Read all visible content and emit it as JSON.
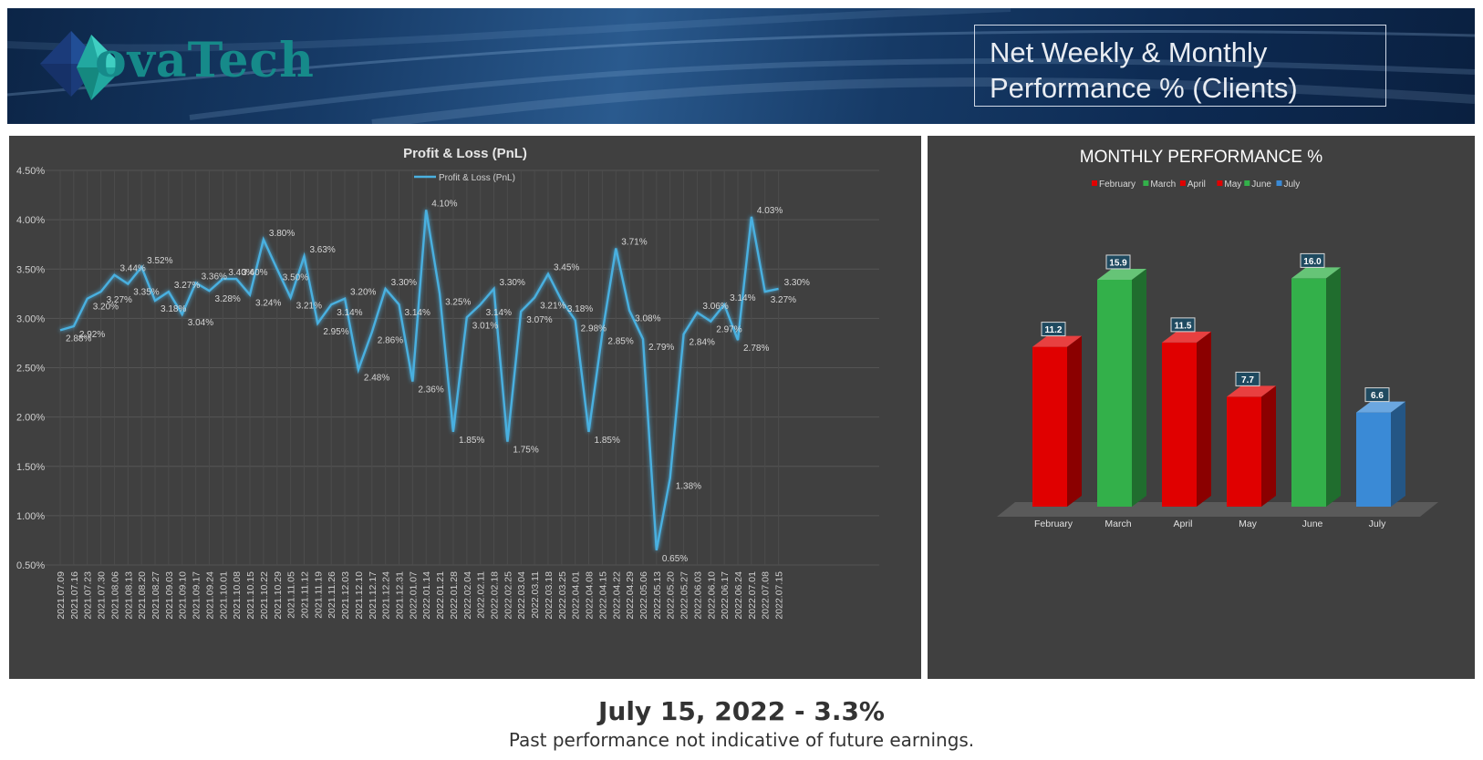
{
  "header": {
    "logo_text": "ovaTech",
    "title_line1": "Net Weekly & Monthly",
    "title_line2": "Performance % (Clients)"
  },
  "footer": {
    "headline": "July 15, 2022 - 3.3%",
    "disclaimer": "Past performance not indicative of future earnings."
  },
  "colors": {
    "line": "#4ab0e0",
    "panel_bg": "#404040",
    "green": "#33b04a",
    "red": "#e00000",
    "blue": "#3a8ad6"
  },
  "chart_data": [
    {
      "type": "line",
      "title": "Profit & Loss (PnL)",
      "legend_position": "top",
      "grid": true,
      "series_name": "Profit & Loss (PnL)",
      "y_ticks": [
        "4.50%",
        "4.00%",
        "3.50%",
        "3.00%",
        "2.50%",
        "2.00%",
        "1.50%",
        "1.00%",
        "0.50%"
      ],
      "ylim": [
        0.5,
        4.5
      ],
      "x": [
        "2021.07.09",
        "2021.07.16",
        "2021.07.23",
        "2021.07.30",
        "2021.08.06",
        "2021.08.13",
        "2021.08.20",
        "2021.08.27",
        "2021.09.03",
        "2021.09.10",
        "2021.09.17",
        "2021.09.24",
        "2021.10.01",
        "2021.10.08",
        "2021.10.15",
        "2021.10.22",
        "2021.10.29",
        "2021.11.05",
        "2021.11.12",
        "2021.11.19",
        "2021.11.26",
        "2021.12.03",
        "2021.12.10",
        "2021.12.17",
        "2021.12.24",
        "2021.12.31",
        "2022.01.07",
        "2022.01.14",
        "2022.01.21",
        "2022.01.28",
        "2022.02.04",
        "2022.02.11",
        "2022.02.18",
        "2022.02.25",
        "2022.03.04",
        "2022.03.11",
        "2022.03.18",
        "2022.03.25",
        "2022.04.01",
        "2022.04.08",
        "2022.04.15",
        "2022.04.22",
        "2022.04.29",
        "2022.05.06",
        "2022.05.13",
        "2022.05.20",
        "2022.05.27",
        "2022.06.03",
        "2022.06.10",
        "2022.06.17",
        "2022.06.24",
        "2022.07.01",
        "2022.07.08",
        "2022.07.15"
      ],
      "values": [
        2.88,
        2.92,
        3.2,
        3.27,
        3.44,
        3.35,
        3.52,
        3.18,
        3.27,
        3.04,
        3.36,
        3.28,
        3.4,
        3.4,
        3.24,
        3.8,
        3.5,
        3.21,
        3.63,
        2.95,
        3.14,
        3.2,
        2.48,
        2.86,
        3.3,
        3.14,
        2.36,
        4.1,
        3.25,
        1.85,
        3.01,
        3.14,
        3.3,
        1.75,
        3.07,
        3.21,
        3.45,
        3.18,
        2.98,
        1.85,
        2.85,
        3.71,
        3.08,
        2.79,
        0.65,
        1.38,
        2.84,
        3.06,
        2.97,
        3.14,
        2.78,
        4.03,
        3.27,
        3.3
      ],
      "labels": [
        "2.88%",
        "2.92%",
        "3.20%",
        "3.27%",
        "3.44%",
        "3.35%",
        "3.52%",
        "3.18%",
        "3.27%",
        "3.04%",
        "3.36%",
        "3.28%",
        "3.40%",
        "3.40%",
        "3.24%",
        "3.80%",
        "3.50%",
        "3.21%",
        "3.63%",
        "2.95%",
        "3.14%",
        "3.20%",
        "2.48%",
        "2.86%",
        "3.30%",
        "3.14%",
        "2.36%",
        "4.10%",
        "3.25%",
        "1.85%",
        "3.01%",
        "3.14%",
        "3.30%",
        "1.75%",
        "3.07%",
        "3.21%",
        "3.45%",
        "3.18%",
        "2.98%",
        "1.85%",
        "2.85%",
        "3.71%",
        "3.08%",
        "2.79%",
        "0.65%",
        "1.38%",
        "2.84%",
        "3.06%",
        "2.97%",
        "3.14%",
        "2.78%",
        "4.03%",
        "3.27%",
        "3.30%"
      ]
    },
    {
      "type": "bar",
      "title": "MONTHLY PERFORMANCE %",
      "legend_position": "top",
      "categories": [
        "February",
        "March",
        "April",
        "May",
        "June",
        "July"
      ],
      "values": [
        11.2,
        15.9,
        11.5,
        7.7,
        16.0,
        6.6
      ],
      "labels": [
        "11.2",
        "15.9",
        "11.5",
        "7.7",
        "16.0",
        "6.6"
      ],
      "colors": [
        "#e00000",
        "#33b04a",
        "#e00000",
        "#e00000",
        "#33b04a",
        "#3a8ad6"
      ]
    }
  ]
}
